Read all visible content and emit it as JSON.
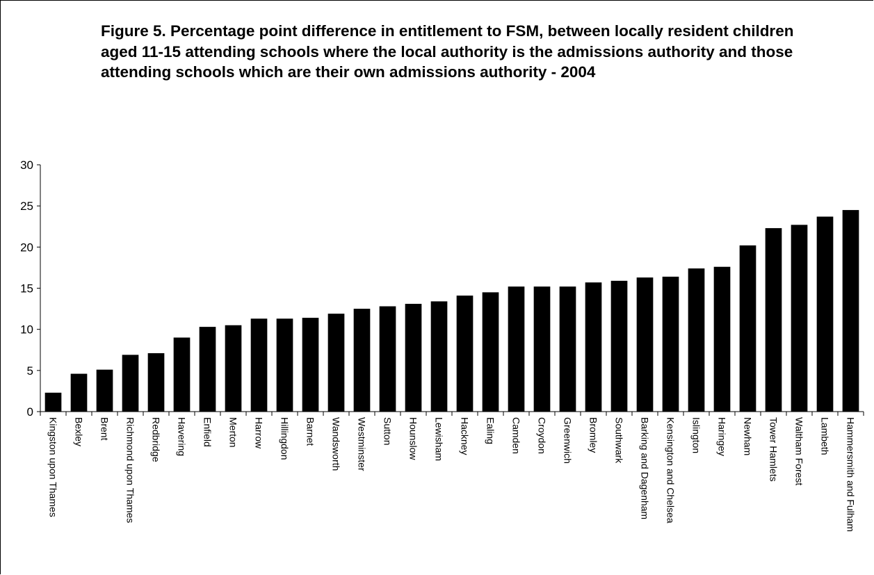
{
  "chart_data": {
    "type": "bar",
    "title": "Figure 5. Percentage point difference in entitlement to FSM, between locally resident children aged 11-15 attending schools where the local authority is the admissions authority and those attending schools which are their own admissions authority - 2004",
    "xlabel": "",
    "ylabel": "",
    "ylim": [
      0,
      30
    ],
    "yticks": [
      0,
      5,
      10,
      15,
      20,
      25,
      30
    ],
    "grid": false,
    "legend": "none",
    "bar_color": "#000000",
    "categories": [
      "Kingston upon Thames",
      "Bexley",
      "Brent",
      "Richmond upon Thames",
      "Redbridge",
      "Havering",
      "Enfield",
      "Merton",
      "Harrow",
      "Hillingdon",
      "Barnet",
      "Wandsworth",
      "Westminster",
      "Sutton",
      "Hounslow",
      "Lewisham",
      "Hackney",
      "Ealing",
      "Camden",
      "Croydon",
      "Greenwich",
      "Bromley",
      "Southwark",
      "Barking and Dagenham",
      "Kensington and Chelsea",
      "Islington",
      "Haringey",
      "Newham",
      "Tower Hamlets",
      "Waltham Forest",
      "Lambeth",
      "Hammersmith and Fulham"
    ],
    "values": [
      2.3,
      4.6,
      5.1,
      6.9,
      7.1,
      9.0,
      10.3,
      10.5,
      11.3,
      11.3,
      11.4,
      11.9,
      12.5,
      12.8,
      13.1,
      13.4,
      14.1,
      14.5,
      15.2,
      15.2,
      15.2,
      15.7,
      15.9,
      16.3,
      16.4,
      17.4,
      17.6,
      20.2,
      22.3,
      22.7,
      23.7,
      24.5
    ]
  }
}
